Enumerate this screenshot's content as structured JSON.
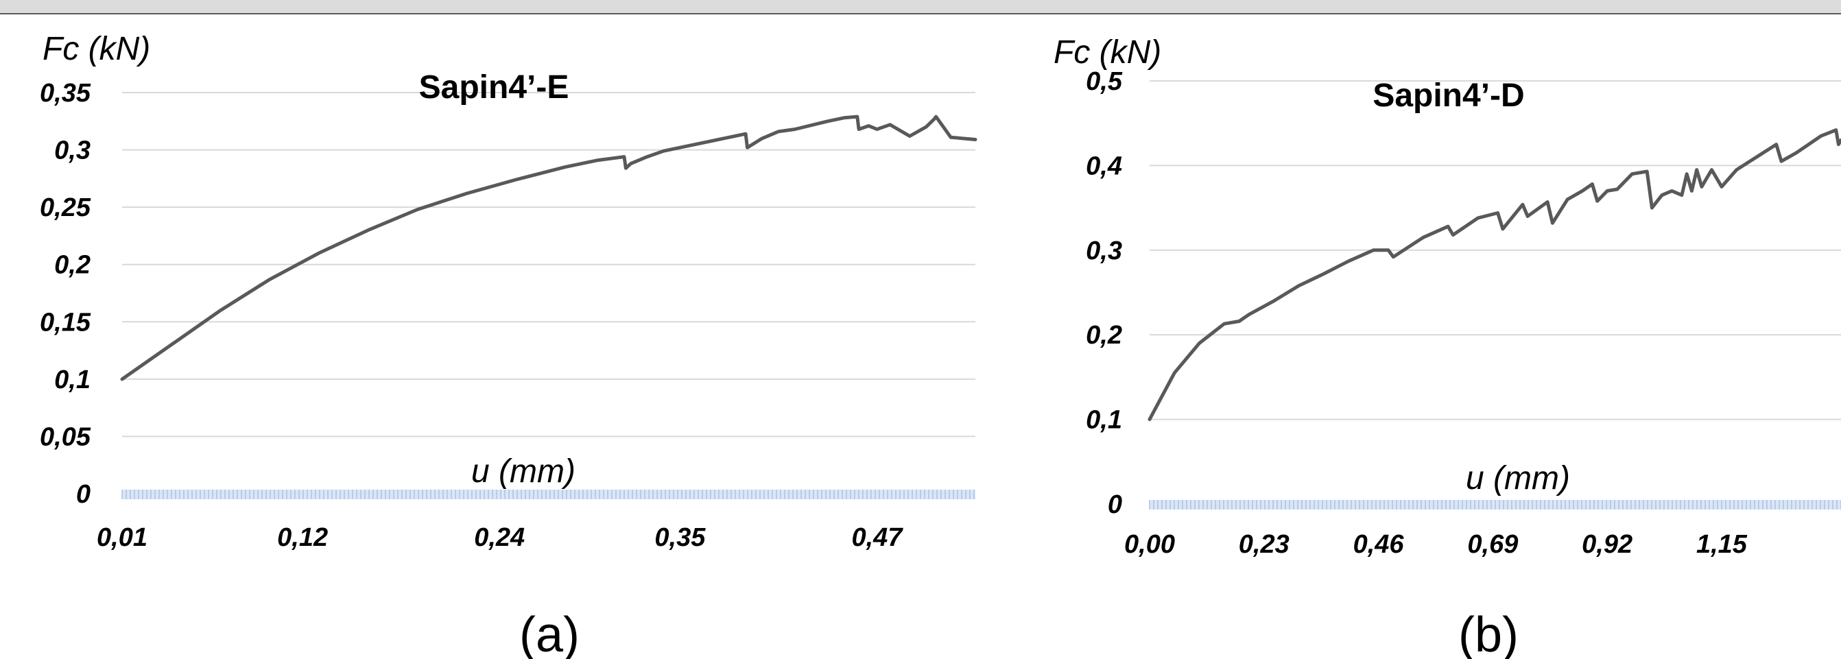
{
  "chart_data": [
    {
      "type": "line",
      "panel_label": "(a)",
      "title": "Sapin4’-E",
      "ylabel": "Fc  (kN)",
      "xlabel": "u (mm)",
      "ylim": [
        0,
        0.35
      ],
      "yticks": [
        "0",
        "0,05",
        "0,1",
        "0,15",
        "0,2",
        "0,25",
        "0,3",
        "0,35"
      ],
      "xlim": [
        0.01,
        0.53
      ],
      "xticks": [
        {
          "label": "0,01",
          "value": 0.01
        },
        {
          "label": "0,12",
          "value": 0.12
        },
        {
          "label": "0,24",
          "value": 0.24
        },
        {
          "label": "0,35",
          "value": 0.35
        },
        {
          "label": "0,47",
          "value": 0.47
        }
      ],
      "grid": true,
      "series": [
        {
          "x": [
            0.01,
            0.04,
            0.07,
            0.1,
            0.13,
            0.16,
            0.19,
            0.22,
            0.25,
            0.28,
            0.3,
            0.316,
            0.317,
            0.32,
            0.33,
            0.34,
            0.36,
            0.38,
            0.39,
            0.391,
            0.4,
            0.41,
            0.42,
            0.44,
            0.45,
            0.458,
            0.459,
            0.465,
            0.47,
            0.478,
            0.49,
            0.5,
            0.505,
            0.506,
            0.515,
            0.53
          ],
          "y": [
            0.1,
            0.13,
            0.16,
            0.187,
            0.21,
            0.23,
            0.248,
            0.262,
            0.274,
            0.285,
            0.291,
            0.294,
            0.284,
            0.288,
            0.294,
            0.299,
            0.305,
            0.311,
            0.314,
            0.302,
            0.31,
            0.316,
            0.318,
            0.325,
            0.328,
            0.329,
            0.318,
            0.321,
            0.318,
            0.322,
            0.312,
            0.32,
            0.327,
            0.329,
            0.311,
            0.309
          ]
        }
      ]
    },
    {
      "type": "line",
      "panel_label": "(b)",
      "title": "Sapin4’-D",
      "ylabel": "Fc  (kN)",
      "xlabel": "u (mm)",
      "ylim": [
        0,
        0.5
      ],
      "yticks": [
        "0",
        "0,1",
        "0,2",
        "0,3",
        "0,4",
        "0,5"
      ],
      "xlim": [
        0.0,
        1.39
      ],
      "xticks": [
        {
          "label": "0,00",
          "value": 0.0
        },
        {
          "label": "0,23",
          "value": 0.23
        },
        {
          "label": "0,46",
          "value": 0.46
        },
        {
          "label": "0,69",
          "value": 0.69
        },
        {
          "label": "0,92",
          "value": 0.92
        },
        {
          "label": "1,15",
          "value": 1.15
        }
      ],
      "grid": true,
      "series": [
        {
          "x": [
            0.0,
            0.05,
            0.1,
            0.15,
            0.18,
            0.2,
            0.25,
            0.3,
            0.35,
            0.4,
            0.45,
            0.48,
            0.49,
            0.55,
            0.6,
            0.61,
            0.66,
            0.7,
            0.71,
            0.75,
            0.76,
            0.8,
            0.81,
            0.84,
            0.87,
            0.89,
            0.9,
            0.92,
            0.94,
            0.97,
            1.0,
            1.01,
            1.03,
            1.05,
            1.07,
            1.08,
            1.09,
            1.1,
            1.11,
            1.12,
            1.13,
            1.15,
            1.18,
            1.22,
            1.26,
            1.27,
            1.3,
            1.35,
            1.38,
            1.385,
            1.39
          ],
          "y": [
            0.1,
            0.155,
            0.19,
            0.213,
            0.216,
            0.224,
            0.24,
            0.258,
            0.272,
            0.287,
            0.3,
            0.3,
            0.292,
            0.315,
            0.328,
            0.318,
            0.338,
            0.344,
            0.325,
            0.354,
            0.34,
            0.357,
            0.332,
            0.36,
            0.37,
            0.378,
            0.358,
            0.37,
            0.372,
            0.39,
            0.393,
            0.35,
            0.365,
            0.37,
            0.365,
            0.39,
            0.37,
            0.395,
            0.375,
            0.385,
            0.395,
            0.375,
            0.395,
            0.41,
            0.425,
            0.405,
            0.415,
            0.435,
            0.442,
            0.425,
            0.43
          ]
        }
      ]
    }
  ]
}
